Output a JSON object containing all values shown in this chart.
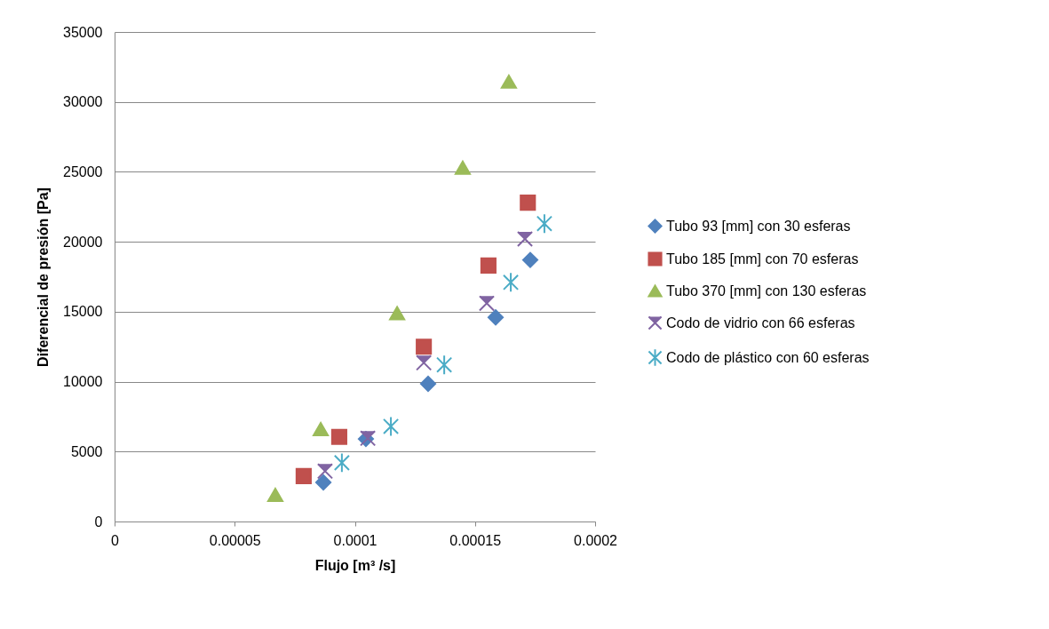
{
  "chart_data": {
    "type": "scatter",
    "xlabel": "Flujo [m³ /s]",
    "ylabel": "Diferencial de presión [Pa]",
    "xlim": [
      0,
      0.0002
    ],
    "xticks": [
      0,
      {
        "value": 5e-05,
        "label": "0.00005"
      },
      0.0001,
      0.00015,
      0.0002
    ],
    "ylim": [
      0,
      35000
    ],
    "yticks": [
      0,
      5000,
      10000,
      15000,
      20000,
      25000,
      30000,
      35000
    ],
    "grid": "y",
    "legend": "right",
    "series": [
      {
        "name": "Tubo 93 [mm] con 30 esferas",
        "color": "#4f81bd",
        "marker": "diamond",
        "x": [
          8.69e-05,
          0.0001046,
          0.0001305,
          0.0001586,
          0.000173
        ],
        "values": [
          2800,
          5900,
          9850,
          14600,
          18700
        ]
      },
      {
        "name": "Tubo 185 [mm] con 70 esferas",
        "color": "#c0504d",
        "marker": "square",
        "x": [
          7.87e-05,
          9.35e-05,
          0.0001287,
          0.0001556,
          0.000172
        ],
        "values": [
          3250,
          6050,
          12500,
          18300,
          22800
        ]
      },
      {
        "name": "Tubo 370 [mm] con 130 esferas",
        "color": "#9bbb59",
        "marker": "triangle",
        "x": [
          6.69e-05,
          8.58e-05,
          0.0001176,
          0.0001449,
          0.0001641
        ],
        "values": [
          1900,
          6600,
          14900,
          25300,
          31450
        ]
      },
      {
        "name": "Codo de vidrio con 66 esferas",
        "color": "#8064a2",
        "marker": "cross",
        "x": [
          8.76e-05,
          0.0001054,
          0.0001287,
          0.0001549,
          0.0001708
        ],
        "values": [
          3600,
          5950,
          11350,
          15600,
          20200
        ]
      },
      {
        "name": "Codo de plástico con 60 esferas",
        "color": "#4bacc6",
        "x": [
          9.46e-05,
          0.000115,
          0.0001372,
          0.0001649,
          0.0001789
        ],
        "values": [
          4200,
          6800,
          11200,
          17100,
          21300
        ]
      }
    ]
  }
}
